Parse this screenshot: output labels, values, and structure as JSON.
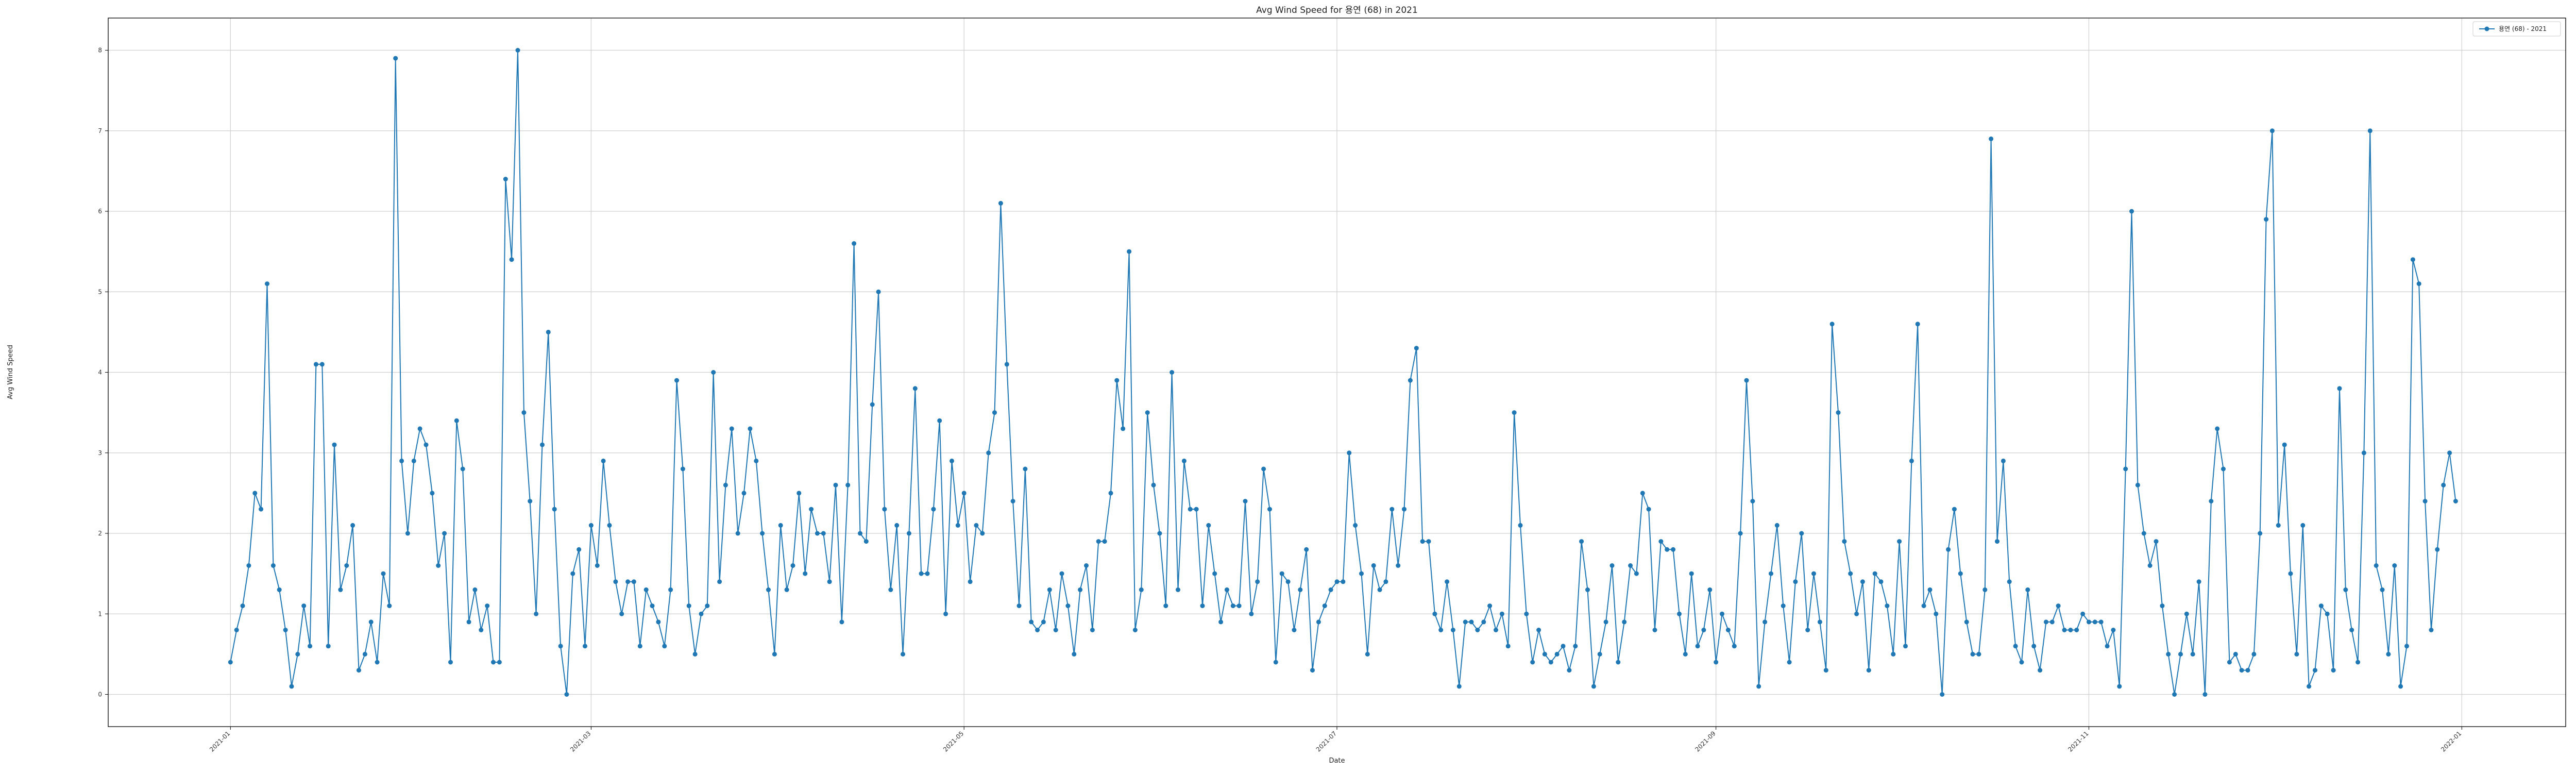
{
  "chart_data": {
    "type": "line",
    "title": "Avg Wind Speed for 용연 (68) in 2021",
    "xlabel": "Date",
    "ylabel": "Avg Wind Speed",
    "grid": true,
    "legend_position": "top-right",
    "color": "#1f77b4",
    "marker": "circle",
    "xlim": [
      "2020-12-12",
      "2022-01-18"
    ],
    "ylim": [
      -0.4,
      8.4
    ],
    "x_ticks": [
      "2021-01",
      "2021-03",
      "2021-05",
      "2021-07",
      "2021-09",
      "2021-11",
      "2022-01"
    ],
    "y_ticks": [
      0,
      1,
      2,
      3,
      4,
      5,
      6,
      7,
      8
    ],
    "series": [
      {
        "name": "용연 (68) - 2021",
        "start_date": "2021-01-01",
        "values": [
          0.4,
          0.8,
          1.1,
          1.6,
          2.5,
          2.3,
          5.1,
          1.6,
          1.3,
          0.8,
          0.1,
          0.5,
          1.1,
          0.6,
          4.1,
          4.1,
          0.6,
          3.1,
          1.3,
          1.6,
          2.1,
          0.3,
          0.5,
          0.9,
          0.4,
          1.5,
          1.1,
          7.9,
          2.9,
          2.0,
          2.9,
          3.3,
          3.1,
          2.5,
          1.6,
          2.0,
          0.4,
          3.4,
          2.8,
          0.9,
          1.3,
          0.8,
          1.1,
          0.4,
          0.4,
          6.4,
          5.4,
          8.0,
          3.5,
          2.4,
          1.0,
          3.1,
          4.5,
          2.3,
          0.6,
          0.0,
          1.5,
          1.8,
          0.6,
          2.1,
          1.6,
          2.9,
          2.1,
          1.4,
          1.0,
          1.4,
          1.4,
          0.6,
          1.3,
          1.1,
          0.9,
          0.6,
          1.3,
          3.9,
          2.8,
          1.1,
          0.5,
          1.0,
          1.1,
          4.0,
          1.4,
          2.6,
          3.3,
          2.0,
          2.5,
          3.3,
          2.9,
          2.0,
          1.3,
          0.5,
          2.1,
          1.3,
          1.6,
          2.5,
          1.5,
          2.3,
          2.0,
          2.0,
          1.4,
          2.6,
          0.9,
          2.6,
          5.6,
          2.0,
          1.9,
          3.6,
          5.0,
          2.3,
          1.3,
          2.1,
          0.5,
          2.0,
          3.8,
          1.5,
          1.5,
          2.3,
          3.4,
          1.0,
          2.9,
          2.1,
          2.5,
          1.4,
          2.1,
          2.0,
          3.0,
          3.5,
          6.1,
          4.1,
          2.4,
          1.1,
          2.8,
          0.9,
          0.8,
          0.9,
          1.3,
          0.8,
          1.5,
          1.1,
          0.5,
          1.3,
          1.6,
          0.8,
          1.9,
          1.9,
          2.5,
          3.9,
          3.3,
          5.5,
          0.8,
          1.3,
          3.5,
          2.6,
          2.0,
          1.1,
          4.0,
          1.3,
          2.9,
          2.3,
          2.3,
          1.1,
          2.1,
          1.5,
          0.9,
          1.3,
          1.1,
          1.1,
          2.4,
          1.0,
          1.4,
          2.8,
          2.3,
          0.4,
          1.5,
          1.4,
          0.8,
          1.3,
          1.8,
          0.3,
          0.9,
          1.1,
          1.3,
          1.4,
          1.4,
          3.0,
          2.1,
          1.5,
          0.5,
          1.6,
          1.3,
          1.4,
          2.3,
          1.6,
          2.3,
          3.9,
          4.3,
          1.9,
          1.9,
          1.0,
          0.8,
          1.4,
          0.8,
          0.1,
          0.9,
          0.9,
          0.8,
          0.9,
          1.1,
          0.8,
          1.0,
          0.6,
          3.5,
          2.1,
          1.0,
          0.4,
          0.8,
          0.5,
          0.4,
          0.5,
          0.6,
          0.3,
          0.6,
          1.9,
          1.3,
          0.1,
          0.5,
          0.9,
          1.6,
          0.4,
          0.9,
          1.6,
          1.5,
          2.5,
          2.3,
          0.8,
          1.9,
          1.8,
          1.8,
          1.0,
          0.5,
          1.5,
          0.6,
          0.8,
          1.3,
          0.4,
          1.0,
          0.8,
          0.6,
          2.0,
          3.9,
          2.4,
          0.1,
          0.9,
          1.5,
          2.1,
          1.1,
          0.4,
          1.4,
          2.0,
          0.8,
          1.5,
          0.9,
          0.3,
          4.6,
          3.5,
          1.9,
          1.5,
          1.0,
          1.4,
          0.3,
          1.5,
          1.4,
          1.1,
          0.5,
          1.9,
          0.6,
          2.9,
          4.6,
          1.1,
          1.3,
          1.0,
          0.0,
          1.8,
          2.3,
          1.5,
          0.9,
          0.5,
          0.5,
          1.3,
          6.9,
          1.9,
          2.9,
          1.4,
          0.6,
          0.4,
          1.3,
          0.6,
          0.3,
          0.9,
          0.9,
          1.1,
          0.8,
          0.8,
          0.8,
          1.0,
          0.9,
          0.9,
          0.9,
          0.6,
          0.8,
          0.1,
          2.8,
          6.0,
          2.6,
          2.0,
          1.6,
          1.9,
          1.1,
          0.5,
          0.0,
          0.5,
          1.0,
          0.5,
          1.4,
          0.0,
          2.4,
          3.3,
          2.8,
          0.4,
          0.5,
          0.3,
          0.3,
          0.5,
          2.0,
          5.9,
          7.0,
          2.1,
          3.1,
          1.5,
          0.5,
          2.1,
          0.1,
          0.3,
          1.1,
          1.0,
          0.3,
          3.8,
          1.3,
          0.8,
          0.4,
          3.0,
          7.0,
          1.6,
          1.3,
          0.5,
          1.6,
          0.1,
          0.6,
          5.4,
          5.1,
          2.4,
          0.8,
          1.8,
          2.6,
          3.0,
          2.4
        ]
      }
    ]
  }
}
